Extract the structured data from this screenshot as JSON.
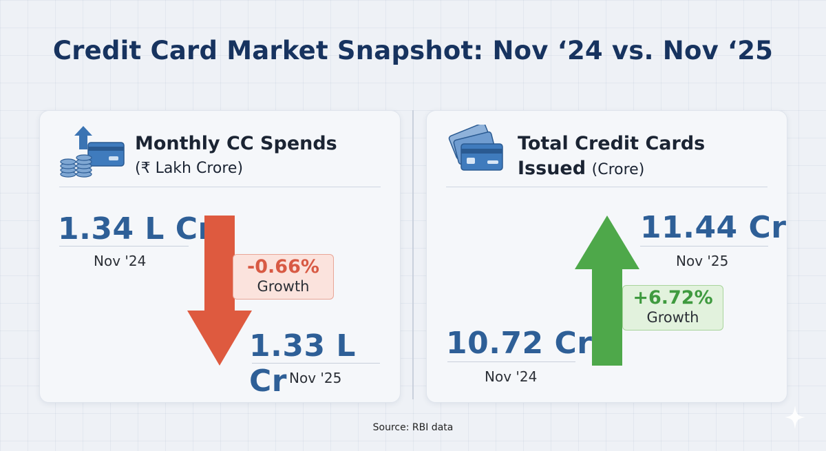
{
  "title": "Credit Card Market Snapshot: Nov ‘24 vs. Nov ‘25",
  "left_card": {
    "title": "Monthly CC Spends",
    "subtitle": "(₹ Lakh Crore)",
    "icon": "coins-card-arrow-icon",
    "before": {
      "value": "1.34 L Cr",
      "period": "Nov '24"
    },
    "after": {
      "value": "1.33 L Cr",
      "period": "Nov '25"
    },
    "change": {
      "percent": "-0.66%",
      "label": "Growth",
      "direction": "down"
    }
  },
  "right_card": {
    "title": "Total Credit Cards",
    "title_line2": "Issued",
    "subtitle": "(Crore)",
    "icon": "credit-cards-icon",
    "before": {
      "value": "10.72 Cr",
      "period": "Nov '24"
    },
    "after": {
      "value": "11.44 Cr",
      "period": "Nov '25"
    },
    "change": {
      "percent": "+6.72%",
      "label": "Growth",
      "direction": "up"
    }
  },
  "source": "Source: RBI data",
  "colors": {
    "title": "#17335f",
    "value": "#2e5f97",
    "negative": "#d85a44",
    "positive": "#4ea84a"
  }
}
